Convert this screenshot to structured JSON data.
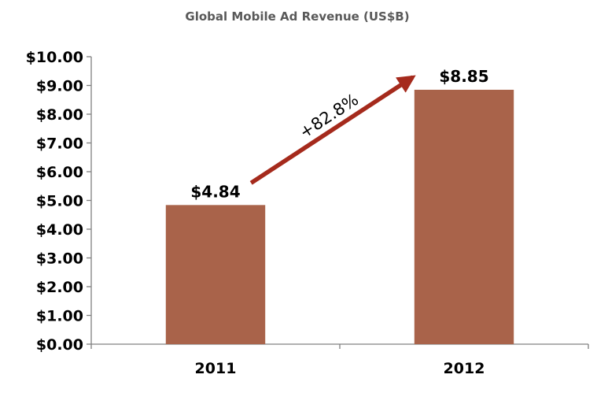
{
  "chart_data": {
    "type": "bar",
    "title": "Global Mobile Ad Revenue (US$B)",
    "xlabel": "",
    "ylabel": "",
    "categories": [
      "2011",
      "2012"
    ],
    "values": [
      4.84,
      8.85
    ],
    "data_labels": [
      "$4.84",
      "$8.85"
    ],
    "ylim": [
      0,
      10
    ],
    "yticks": [
      0,
      1,
      2,
      3,
      4,
      5,
      6,
      7,
      8,
      9,
      10
    ],
    "ytick_labels": [
      "$0.00",
      "$1.00",
      "$2.00",
      "$3.00",
      "$4.00",
      "$5.00",
      "$6.00",
      "$7.00",
      "$8.00",
      "$9.00",
      "$10.00"
    ],
    "grid": false,
    "legend": "none",
    "annotation": {
      "text": "+82.8%",
      "from": "2011",
      "to": "2012"
    },
    "colors": {
      "bar": "#A9634A",
      "arrow": "#A52A1C",
      "axis": "#808080",
      "title": "#595959"
    }
  }
}
